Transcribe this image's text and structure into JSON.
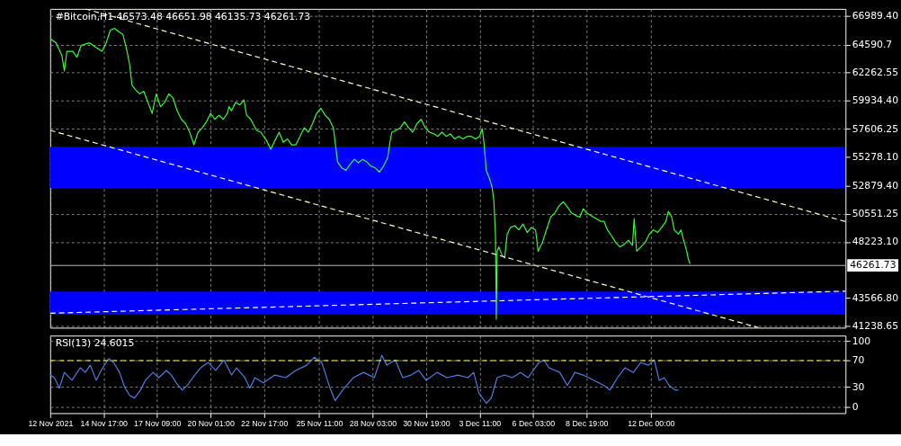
{
  "chart_data": [
    {
      "type": "line",
      "title": "#Bitcoin,H1  46573.48 46651.98 46135.73 46261.73",
      "xlim": [
        "2021-11-12T01:00",
        "2021-12-21T17:00"
      ],
      "xticks": [
        {
          "value": "2021-11-12T01:00",
          "label": null
        },
        {
          "value": "2021-11-14T17:00",
          "label": null
        },
        {
          "value": "2021-11-17T09:00",
          "label": null
        },
        {
          "value": "2021-11-20T01:00",
          "label": null
        },
        {
          "value": "2021-11-22T17:00",
          "label": null
        },
        {
          "value": "2021-11-25T11:00",
          "label": null
        },
        {
          "value": "2021-11-28T03:00",
          "label": null
        },
        {
          "value": "2021-11-30T19:00",
          "label": null
        },
        {
          "value": "2021-12-03T11:00",
          "label": null
        },
        {
          "value": "2021-12-06T03:00",
          "label": null
        },
        {
          "value": "2021-12-08T19:00",
          "label": null
        },
        {
          "value": "2021-12-12T00:00",
          "label": null
        }
      ],
      "ylim": [
        41100,
        67550
      ],
      "yticks": [
        {
          "value": 66989.4,
          "label": "66989.40"
        },
        64590.7,
        62262.55,
        {
          "value": 59934.4,
          "label": "59934.40"
        },
        57606.25,
        {
          "value": 55278.1,
          "label": "55278.10"
        },
        {
          "value": 52879.4,
          "label": "52879.40"
        },
        50551.25,
        {
          "value": 48223.1,
          "label": "48223.10"
        },
        {
          "value": 43566.8,
          "label": "43566.80"
        },
        41238.65
      ],
      "tick_labels": "y",
      "grid": true,
      "bands": [
        {
          "axis": "y",
          "from": 52700,
          "to": 56100,
          "color": "#0000ff"
        },
        {
          "axis": "y",
          "from": 42200,
          "to": 44100,
          "color": "#0000ff"
        }
      ],
      "ref_lines": [
        {
          "axis": "y",
          "value": 46261.73,
          "label": "46261.73",
          "color": "#c0c0c0"
        }
      ],
      "series": [
        {
          "color": "#33ff33",
          "line_style": "solid",
          "x": [
            "2021-11-12T01:00",
            "2021-11-12T08:00",
            "2021-11-12T15:00",
            "2021-11-12T18:00",
            "2021-11-12T21:00",
            "2021-11-13T04:00",
            "2021-11-13T09:00",
            "2021-11-13T14:00",
            "2021-11-14T00:00",
            "2021-11-14T07:00",
            "2021-11-14T15:00",
            "2021-11-14T20:00",
            "2021-11-15T01:00",
            "2021-11-15T06:00",
            "2021-11-15T11:00",
            "2021-11-15T16:00",
            "2021-11-15T21:00",
            "2021-11-16T00:00",
            "2021-11-16T03:00",
            "2021-11-16T07:00",
            "2021-11-16T12:00",
            "2021-11-16T17:00",
            "2021-11-16T22:00",
            "2021-11-17T03:00",
            "2021-11-17T08:00",
            "2021-11-17T13:00",
            "2021-11-17T18:00",
            "2021-11-17T23:00",
            "2021-11-18T04:00",
            "2021-11-18T09:00",
            "2021-11-18T14:00",
            "2021-11-18T19:00",
            "2021-11-19T00:00",
            "2021-11-19T05:00",
            "2021-11-19T10:00",
            "2021-11-19T15:00",
            "2021-11-19T20:00",
            "2021-11-20T01:00",
            "2021-11-20T06:00",
            "2021-11-20T11:00",
            "2021-11-20T16:00",
            "2021-11-20T21:00",
            "2021-11-20T23:00",
            "2021-11-21T02:00",
            "2021-11-21T07:00",
            "2021-11-21T12:00",
            "2021-11-21T17:00",
            "2021-11-21T20:00",
            "2021-11-22T01:00",
            "2021-11-22T08:00",
            "2021-11-22T13:00",
            "2021-11-22T20:00",
            "2021-11-23T01:00",
            "2021-11-23T06:00",
            "2021-11-23T11:00",
            "2021-11-23T16:00",
            "2021-11-23T21:00",
            "2021-11-24T02:00",
            "2021-11-24T07:00",
            "2021-11-24T12:00",
            "2021-11-24T17:00",
            "2021-11-24T22:00",
            "2021-11-25T03:00",
            "2021-11-25T08:00",
            "2021-11-25T13:00",
            "2021-11-25T18:00",
            "2021-11-25T23:00",
            "2021-11-26T04:00",
            "2021-11-26T09:00",
            "2021-11-26T14:00",
            "2021-11-26T19:00",
            "2021-11-27T00:00",
            "2021-11-27T05:00",
            "2021-11-27T10:00",
            "2021-11-27T15:00",
            "2021-11-27T20:00",
            "2021-11-28T01:00",
            "2021-11-28T06:00",
            "2021-11-28T11:00",
            "2021-11-28T16:00",
            "2021-11-28T21:00",
            "2021-11-29T00:00",
            "2021-11-29T02:00",
            "2021-11-29T07:00",
            "2021-11-29T12:00",
            "2021-11-29T17:00",
            "2021-11-29T22:00",
            "2021-11-30T03:00",
            "2021-11-30T08:00",
            "2021-11-30T13:00",
            "2021-11-30T18:00",
            "2021-11-30T23:00",
            "2021-12-01T04:00",
            "2021-12-01T09:00",
            "2021-12-01T14:00",
            "2021-12-01T19:00",
            "2021-12-02T00:00",
            "2021-12-02T05:00",
            "2021-12-02T10:00",
            "2021-12-02T15:00",
            "2021-12-02T20:00",
            "2021-12-03T01:00",
            "2021-12-03T06:00",
            "2021-12-03T11:00",
            "2021-12-03T14:00",
            "2021-12-03T16:00",
            "2021-12-03T19:00",
            "2021-12-03T23:00",
            "2021-12-04T02:00",
            "2021-12-04T04:00",
            "2021-12-04T06:00",
            "2021-12-04T07:00",
            "2021-12-04T08:00",
            "2021-12-04T10:00",
            "2021-12-04T14:00",
            "2021-12-04T17:00",
            "2021-12-04T20:00",
            "2021-12-05T00:00",
            "2021-12-05T05:00",
            "2021-12-05T10:00",
            "2021-12-05T15:00",
            "2021-12-05T20:00",
            "2021-12-06T01:00",
            "2021-12-06T06:00",
            "2021-12-06T09:00",
            "2021-12-06T14:00",
            "2021-12-06T19:00",
            "2021-12-07T00:00",
            "2021-12-07T05:00",
            "2021-12-07T10:00",
            "2021-12-07T15:00",
            "2021-12-07T20:00",
            "2021-12-08T01:00",
            "2021-12-08T06:00",
            "2021-12-08T11:00",
            "2021-12-08T15:00",
            "2021-12-08T19:00",
            "2021-12-09T12:00",
            "2021-12-09T16:00",
            "2021-12-09T20:00",
            "2021-12-10T01:00",
            "2021-12-10T06:00",
            "2021-12-10T11:00",
            "2021-12-10T16:00",
            "2021-12-10T21:00",
            "2021-12-11T02:00",
            "2021-12-11T04:00",
            "2021-12-11T07:00",
            "2021-12-11T12:00",
            "2021-12-11T17:00",
            "2021-12-11T22:00",
            "2021-12-12T03:00",
            "2021-12-12T08:00",
            "2021-12-12T13:00",
            "2021-12-12T18:00",
            "2021-12-12T21:00",
            "2021-12-13T01:00",
            "2021-12-13T04:00",
            "2021-12-13T09:00",
            "2021-12-13T12:00",
            "2021-12-13T16:00",
            "2021-12-13T19:00",
            "2021-12-13T21:00",
            "2021-12-13T23:00"
          ],
          "values": [
            65080,
            64730,
            63670,
            62400,
            64030,
            64030,
            63530,
            64520,
            64730,
            64380,
            64030,
            64730,
            65790,
            65930,
            65650,
            65440,
            64030,
            62970,
            61200,
            60850,
            60500,
            60710,
            59790,
            58880,
            60500,
            59440,
            59790,
            60500,
            60150,
            59090,
            58380,
            58030,
            57320,
            56270,
            57320,
            57680,
            58170,
            58880,
            58380,
            58730,
            58380,
            58880,
            59440,
            59090,
            59790,
            59580,
            60000,
            58730,
            58380,
            57470,
            57320,
            56620,
            55910,
            56620,
            57320,
            56480,
            56760,
            56270,
            56270,
            56970,
            57680,
            57320,
            58030,
            58880,
            59300,
            58730,
            58380,
            57680,
            54850,
            54360,
            54150,
            54640,
            55070,
            54780,
            55070,
            54850,
            54500,
            54360,
            54010,
            54500,
            55210,
            56620,
            57320,
            57470,
            57680,
            58170,
            57680,
            57320,
            58030,
            58380,
            57680,
            57320,
            57180,
            56970,
            57320,
            56970,
            57180,
            56760,
            56970,
            56760,
            56970,
            56970,
            56760,
            56970,
            57610,
            56620,
            54150,
            53440,
            52740,
            51680,
            48860,
            41800,
            47450,
            47800,
            47090,
            46880,
            48860,
            49420,
            49560,
            49210,
            49700,
            49000,
            49420,
            49210,
            47450,
            48150,
            49210,
            50270,
            50620,
            51190,
            51540,
            51120,
            50620,
            50410,
            50270,
            50970,
            50620,
            49920,
            49920,
            49210,
            48720,
            48150,
            47800,
            48010,
            48360,
            47940,
            50130,
            47450,
            47800,
            48150,
            48860,
            49210,
            49000,
            49420,
            49920,
            50760,
            50270,
            49210,
            48860,
            49210,
            48150,
            47450,
            46740,
            46390
          ]
        },
        {
          "color": "#ffffcc",
          "line_style": "dashed",
          "x": [
            "2021-11-13T19:00",
            "2021-12-21T17:00"
          ],
          "values": [
            67550,
            49900
          ]
        },
        {
          "color": "#ffffcc",
          "line_style": "dashed",
          "x": [
            "2021-11-12T01:00",
            "2021-12-17T09:00"
          ],
          "values": [
            57470,
            41100
          ]
        },
        {
          "color": "#ffffff",
          "line_style": "dashed",
          "x": [
            "2021-11-12T01:00",
            "2021-12-21T17:00"
          ],
          "values": [
            42300,
            44130
          ]
        }
      ]
    },
    {
      "type": "line",
      "title": "RSI(13) 24.6015",
      "xlim": [
        "2021-11-12T01:00",
        "2021-12-21T17:00"
      ],
      "xticks": [
        {
          "value": "2021-11-12T01:00",
          "label": "12 Nov 2021"
        },
        {
          "value": "2021-11-14T17:00",
          "label": "14 Nov 17:00"
        },
        {
          "value": "2021-11-17T09:00",
          "label": "17 Nov 09:00"
        },
        {
          "value": "2021-11-20T01:00",
          "label": "20 Nov 01:00"
        },
        {
          "value": "2021-11-22T17:00",
          "label": "22 Nov 17:00"
        },
        {
          "value": "2021-11-25T11:00",
          "label": "25 Nov 11:00"
        },
        {
          "value": "2021-11-28T03:00",
          "label": "28 Nov 03:00"
        },
        {
          "value": "2021-11-30T19:00",
          "label": "30 Nov 19:00"
        },
        {
          "value": "2021-12-03T11:00",
          "label": "3 Dec 11:00"
        },
        {
          "value": "2021-12-06T03:00",
          "label": "6 Dec 03:00"
        },
        {
          "value": "2021-12-08T19:00",
          "label": "8 Dec 19:00"
        },
        {
          "value": "2021-12-12T00:00",
          "label": "12 Dec 00:00"
        }
      ],
      "ylim": [
        -10,
        108
      ],
      "yticks": [
        0,
        30,
        70,
        100
      ],
      "grid": true,
      "ref_lines": [
        {
          "axis": "y",
          "value": 70,
          "color": "#ffff66",
          "line_style": "dashed"
        }
      ],
      "series": [
        {
          "color": "#4f7fdf",
          "line_style": "solid",
          "x": [
            "2021-11-12T01:00",
            "2021-11-12T06:00",
            "2021-11-12T12:00",
            "2021-11-12T18:00",
            "2021-11-13T03:00",
            "2021-11-13T13:00",
            "2021-11-13T19:00",
            "2021-11-14T01:00",
            "2021-11-14T08:00",
            "2021-11-14T14:00",
            "2021-11-14T23:00",
            "2021-11-15T05:00",
            "2021-11-15T12:00",
            "2021-11-15T18:00",
            "2021-11-16T00:00",
            "2021-11-16T06:00",
            "2021-11-16T13:00",
            "2021-11-16T19:00",
            "2021-11-17T04:00",
            "2021-11-17T11:00",
            "2021-11-17T20:00",
            "2021-11-18T02:00",
            "2021-11-18T08:00",
            "2021-11-18T15:00",
            "2021-11-18T21:00",
            "2021-11-19T06:00",
            "2021-11-19T13:00",
            "2021-11-19T22:00",
            "2021-11-20T07:00",
            "2021-11-20T17:00",
            "2021-11-21T02:00",
            "2021-11-21T08:00",
            "2021-11-21T18:00",
            "2021-11-22T00:00",
            "2021-11-22T06:00",
            "2021-11-22T16:00",
            "2021-11-23T06:00",
            "2021-11-23T19:00",
            "2021-11-24T07:00",
            "2021-11-24T20:00",
            "2021-11-25T05:00",
            "2021-11-25T14:00",
            "2021-11-26T00:00",
            "2021-11-26T06:00",
            "2021-11-26T15:00",
            "2021-11-27T04:00",
            "2021-11-27T16:00",
            "2021-11-28T05:00",
            "2021-11-28T14:00",
            "2021-11-28T20:00",
            "2021-11-29T06:00",
            "2021-11-29T15:00",
            "2021-11-30T01:00",
            "2021-11-30T10:00",
            "2021-11-30T19:00",
            "2021-12-01T08:00",
            "2021-12-01T20:00",
            "2021-12-02T09:00",
            "2021-12-02T21:00",
            "2021-12-03T04:00",
            "2021-12-03T10:00",
            "2021-12-03T19:00",
            "2021-12-04T01:00",
            "2021-12-04T08:00",
            "2021-12-04T17:00",
            "2021-12-05T02:00",
            "2021-12-05T12:00",
            "2021-12-05T21:00",
            "2021-12-06T10:00",
            "2021-12-06T16:00",
            "2021-12-06T22:00",
            "2021-12-07T11:00",
            "2021-12-07T20:00",
            "2021-12-08T05:00",
            "2021-12-08T15:00",
            "2021-12-09T16:00",
            "2021-12-09T23:00",
            "2021-12-10T08:00",
            "2021-12-10T17:00",
            "2021-12-11T03:00",
            "2021-12-11T12:00",
            "2021-12-11T21:00",
            "2021-12-12T04:00",
            "2021-12-12T10:00",
            "2021-12-12T16:00",
            "2021-12-12T22:00",
            "2021-12-13T05:00",
            "2021-12-13T09:00"
          ],
          "values": [
            48,
            44,
            28,
            52,
            40,
            59,
            52,
            63,
            40,
            55,
            73,
            67,
            52,
            30,
            17,
            13,
            25,
            40,
            52,
            44,
            55,
            48,
            36,
            25,
            32,
            48,
            59,
            67,
            55,
            71,
            48,
            59,
            44,
            28,
            44,
            36,
            48,
            44,
            55,
            63,
            75,
            67,
            28,
            9,
            25,
            44,
            52,
            44,
            78,
            63,
            71,
            44,
            48,
            55,
            40,
            52,
            44,
            48,
            44,
            52,
            21,
            5,
            13,
            44,
            48,
            44,
            52,
            44,
            67,
            71,
            59,
            52,
            32,
            52,
            48,
            32,
            25,
            44,
            59,
            52,
            67,
            63,
            71,
            40,
            44,
            32,
            25,
            25
          ]
        }
      ]
    }
  ]
}
